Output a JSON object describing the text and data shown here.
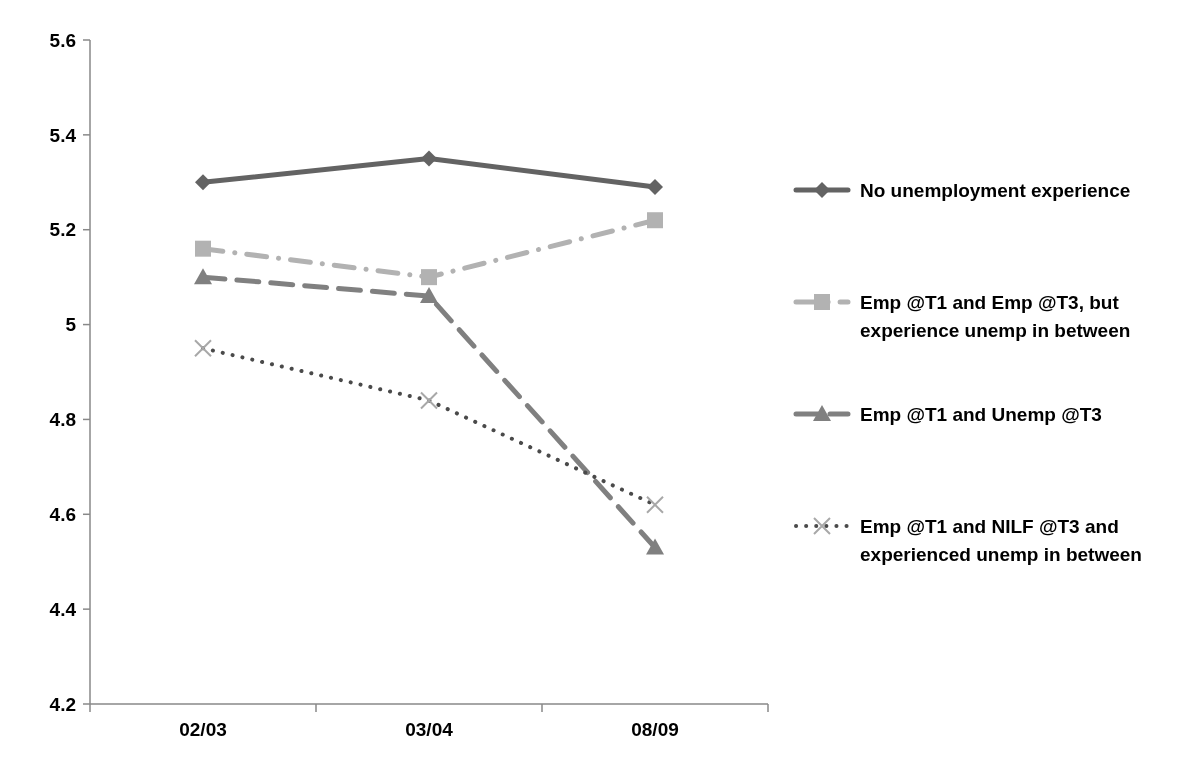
{
  "chart_data": {
    "type": "line",
    "categories": [
      "02/03",
      "03/04",
      "08/09"
    ],
    "ylim": [
      4.2,
      5.6
    ],
    "yticks": [
      4.2,
      4.4,
      4.6,
      4.8,
      5,
      5.2,
      5.4,
      5.6
    ],
    "grid": false,
    "legend": "right",
    "series": [
      {
        "name": "No unemployment experience",
        "color": "#636363",
        "values": [
          5.3,
          5.35,
          5.29
        ],
        "marker": "diamond",
        "line_style": "solid"
      },
      {
        "name": "Emp @T1 and Emp @T3, but experience unemp in between",
        "color": "#b2b2b2",
        "values": [
          5.16,
          5.1,
          5.22
        ],
        "marker": "square",
        "line_style": "dashdot"
      },
      {
        "name": "Emp @T1 and Unemp @T3",
        "color": "#808080",
        "values": [
          5.1,
          5.06,
          4.53
        ],
        "marker": "triangle",
        "line_style": "dashed"
      },
      {
        "name": "Emp @T1 and NILF @T3 and experienced unemp in between",
        "color": "#4a4a4a",
        "values": [
          4.95,
          4.84,
          4.62
        ],
        "marker": "cross",
        "line_style": "dotted"
      }
    ]
  }
}
